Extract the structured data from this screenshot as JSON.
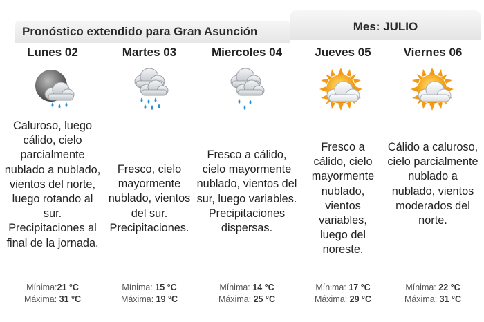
{
  "header": {
    "title": "Pronóstico extendido para Gran Asunción",
    "month": "Mes: JULIO"
  },
  "min_label": "Mínima:",
  "max_label": "Máxima:",
  "unit": " °C",
  "days": [
    {
      "name": "Lunes 02",
      "icon": "night-rain-cloud-icon",
      "description": "Caluroso, luego cálido, cielo parcialmente nublado a nublado, vientos del norte, luego rotando al sur. Precipitaciones al final de la jornada.",
      "min": "21",
      "max": "31"
    },
    {
      "name": "Martes 03",
      "icon": "heavy-rain-cloud-icon",
      "description": "Fresco, cielo mayormente nublado, vientos del sur. Precipitaciones.",
      "min": "15",
      "max": "19"
    },
    {
      "name": "Miercoles 04",
      "icon": "light-rain-cloud-icon",
      "description": "Fresco a cálido, cielo mayormente nublado, vientos del sur, luego variables. Precipitaciones dispersas.",
      "min": "14",
      "max": "25"
    },
    {
      "name": "Jueves 05",
      "icon": "sun-cloud-icon",
      "description": "Fresco a cálido, cielo mayormente nublado, vientos variables, luego del noreste.",
      "min": "17",
      "max": "29"
    },
    {
      "name": "Viernes 06",
      "icon": "sun-cloud-icon",
      "description": "Cálido a caluroso, cielo parcialmente nublado a nublado, vientos moderados del norte.",
      "min": "22",
      "max": "31"
    }
  ]
}
